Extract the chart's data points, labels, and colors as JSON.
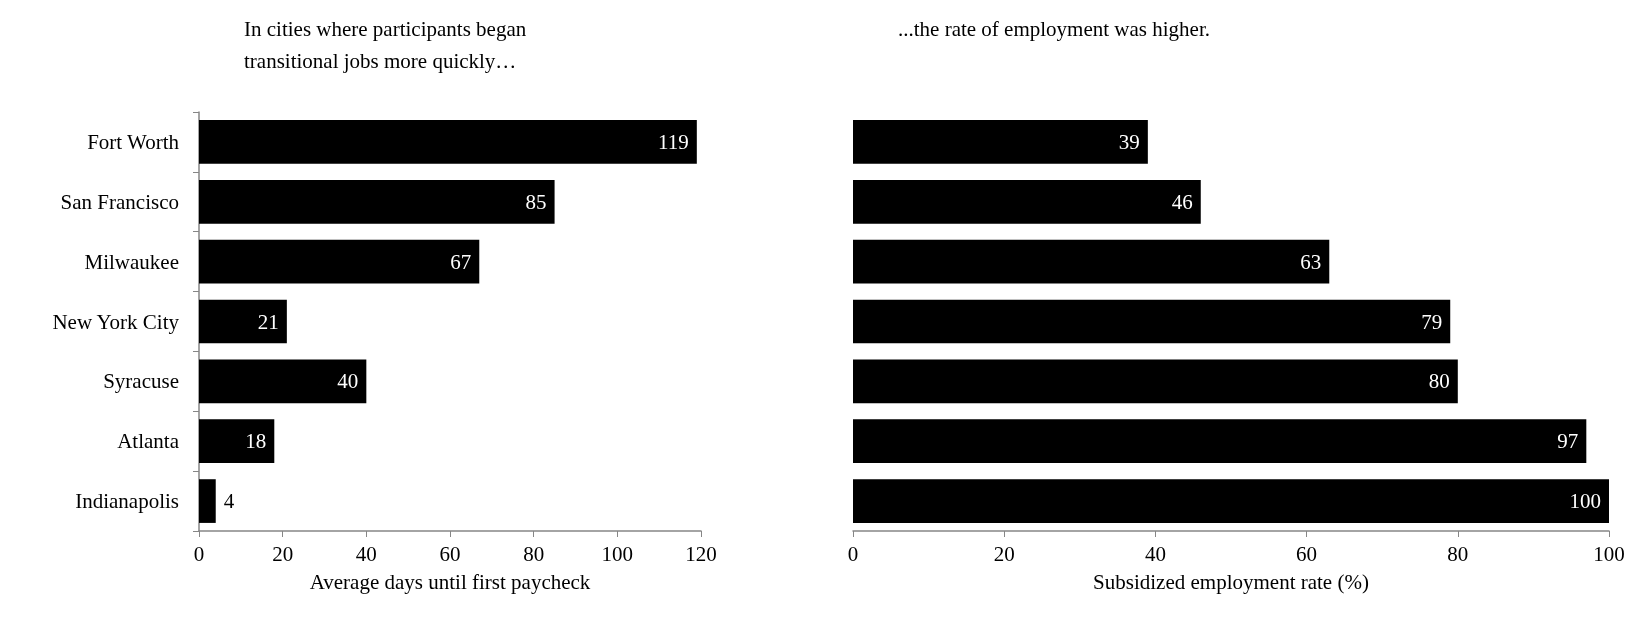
{
  "chart_data": [
    {
      "type": "bar",
      "orientation": "horizontal",
      "title": "In cities where participants began\ntransitional jobs more quickly…",
      "xlabel": "Average days until first paycheck",
      "categories": [
        "Fort Worth",
        "San Francisco",
        "Milwaukee",
        "New York City",
        "Syracuse",
        "Atlanta",
        "Indianapolis"
      ],
      "values": [
        119,
        85,
        67,
        21,
        40,
        18,
        4
      ],
      "color": "#000000",
      "xlim": [
        0,
        120
      ],
      "xticks": [
        0,
        20,
        40,
        60,
        80,
        100,
        120
      ],
      "data_labels": true
    },
    {
      "type": "bar",
      "orientation": "horizontal",
      "title": "...the rate of employment was higher.",
      "xlabel": "Subsidized employment rate (%)",
      "categories": [
        null,
        null,
        null,
        null,
        null,
        null,
        null
      ],
      "values": [
        39,
        46,
        63,
        79,
        80,
        97,
        100
      ],
      "color": "#000000",
      "xlim": [
        0,
        100
      ],
      "xticks": [
        0,
        20,
        40,
        60,
        80,
        100
      ],
      "data_labels": true,
      "tick_labels": "x"
    }
  ]
}
